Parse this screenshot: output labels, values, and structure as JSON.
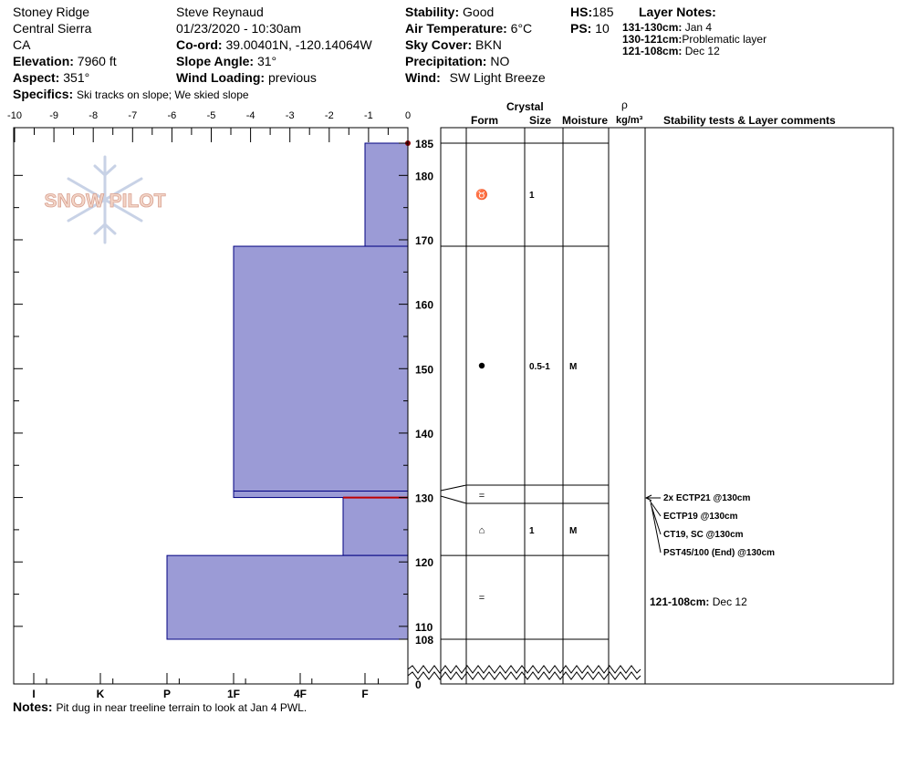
{
  "header": {
    "location": "Stoney Ridge",
    "region": "Central Sierra",
    "state": "CA",
    "elevation_label": "Elevation:",
    "elevation": "7960 ft",
    "aspect_label": "Aspect:",
    "aspect": "351°",
    "specifics_label": "Specifics:",
    "specifics": "Ski tracks on slope; We skied slope",
    "observer": "Steve Reynaud",
    "datetime": "01/23/2020 - 10:30am",
    "coord_label": "Co-ord:",
    "coord": "39.00401N, -120.14064W",
    "slope_label": "Slope Angle:",
    "slope": "31°",
    "wind_loading_label": "Wind Loading:",
    "wind_loading": "previous",
    "stability_label": "Stability:",
    "stability": "Good",
    "air_temp_label": "Air Temperature:",
    "air_temp": "6°C",
    "sky_label": "Sky Cover:",
    "sky": "BKN",
    "precip_label": "Precipitation:",
    "precip": "NO",
    "wind_label": "Wind:",
    "wind": "SW Light Breeze",
    "hs_label": "HS:",
    "hs": "185",
    "ps_label": "PS:",
    "ps": "10",
    "layer_notes_title": "Layer Notes:",
    "layer_notes": [
      {
        "range": "131-130cm:",
        "text": "Jan 4"
      },
      {
        "range": "130-121cm:",
        "text": "Problematic layer"
      },
      {
        "range": "121-108cm:",
        "text": "Dec 12"
      }
    ]
  },
  "notes_label": "Notes:",
  "notes": "Pit dug in near treeline terrain to look at Jan 4 PWL.",
  "logo_text": "SNOW PILOT",
  "table_headers": {
    "crystal": "Crystal",
    "form": "Form",
    "size": "Size",
    "moisture": "Moisture",
    "rho": "ρ",
    "density_unit": "kg/m³",
    "comments": "Stability tests & Layer comments"
  },
  "stability_tests": [
    "2x ECTP21 @130cm",
    "ECTP19 @130cm",
    "CT19, SC @130cm",
    "PST45/100 (End) @130cm"
  ],
  "layer_comment": {
    "range": "121-108cm:",
    "text": "Dec 12"
  },
  "chart_data": {
    "type": "bar",
    "top_axis_ticks": [
      "-10",
      "-9",
      "-8",
      "-7",
      "-6",
      "-5",
      "-4",
      "-3",
      "-2",
      "-1",
      "0"
    ],
    "hardness_ticks": [
      "I",
      "K",
      "P",
      "1F",
      "4F",
      "F"
    ],
    "depth_ticks": [
      "185",
      "180",
      "170",
      "160",
      "150",
      "140",
      "130",
      "120",
      "110",
      "108",
      "0"
    ],
    "depth_range": [
      108,
      185
    ],
    "hardness_layers": [
      {
        "top": 185,
        "bottom": 169,
        "hardness": "F"
      },
      {
        "top": 169,
        "bottom": 131,
        "hardness": "1F+"
      },
      {
        "top": 131,
        "bottom": 130,
        "hardness": "1F+"
      },
      {
        "top": 130,
        "bottom": 121,
        "hardness": "4F-"
      },
      {
        "top": 121,
        "bottom": 108,
        "hardness": "P-"
      }
    ],
    "layer_rows": [
      {
        "top": 185,
        "bottom": 169,
        "form": "♉",
        "size": "1",
        "moisture": ""
      },
      {
        "top": 169,
        "bottom": 131,
        "form": "●",
        "size": "0.5-1",
        "moisture": "M"
      },
      {
        "top": 131,
        "bottom": 130,
        "form": "",
        "size": "",
        "moisture": ""
      },
      {
        "top": 130,
        "bottom": 121,
        "form": "⌂",
        "size": "1",
        "moisture": "M"
      },
      {
        "top": 121,
        "bottom": 108,
        "form": "=",
        "size": "",
        "moisture": ""
      }
    ],
    "boundary_symbols": [
      {
        "depth": 130.5,
        "symbol": "="
      }
    ],
    "weak_layer_depth": 130,
    "test_depth": 130,
    "colors": {
      "layer_fill": "#9b9bd6",
      "layer_stroke": "#000080",
      "weak_layer": "#c00000"
    }
  }
}
